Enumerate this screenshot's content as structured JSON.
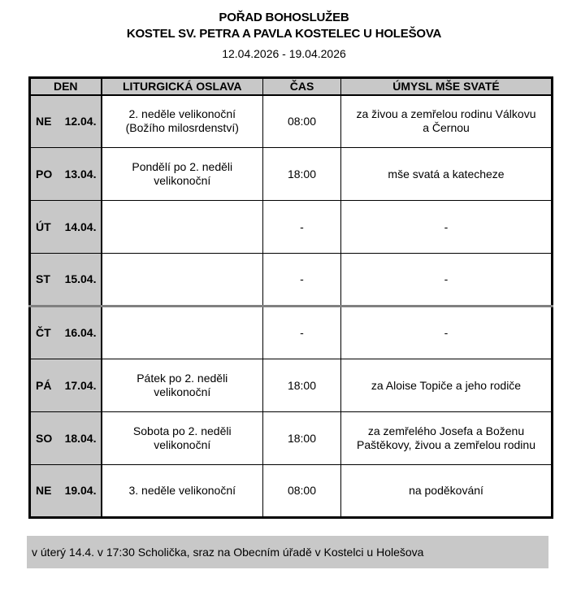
{
  "title": {
    "line1": "POŘAD BOHOSLUŽEB",
    "line2": "KOSTEL SV. PETRA A PAVLA KOSTELEC U HOLEŠOVA",
    "date_range": "12.04.2026 - 19.04.2026"
  },
  "table": {
    "headers": [
      "DEN",
      "LITURGICKÁ OSLAVA",
      "ČAS",
      "ÚMYSL MŠE SVATÉ"
    ],
    "rows": [
      {
        "day": "NE",
        "date": "12.04.",
        "celebration": "2. neděle velikonoční\n(Božího milosrdenství)",
        "time": "08:00",
        "intention": "za živou a zemřelou rodinu Válkovu\na Černou"
      },
      {
        "day": "PO",
        "date": "13.04.",
        "celebration": "Pondělí po 2. neděli\nvelikonoční",
        "time": "18:00",
        "intention": "mše svatá a katecheze"
      },
      {
        "day": "ÚT",
        "date": "14.04.",
        "celebration": "",
        "time": "-",
        "intention": "-"
      },
      {
        "day": "ST",
        "date": "15.04.",
        "celebration": "",
        "time": "-",
        "intention": "-"
      },
      {
        "day": "ČT",
        "date": "16.04.",
        "celebration": "",
        "time": "-",
        "intention": "-"
      },
      {
        "day": "PÁ",
        "date": "17.04.",
        "celebration": "Pátek po 2. neděli\nvelikonoční",
        "time": "18:00",
        "intention": "za Aloise Topiče a jeho rodiče"
      },
      {
        "day": "SO",
        "date": "18.04.",
        "celebration": "Sobota po 2. neděli\nvelikonoční",
        "time": "18:00",
        "intention": "za zemřelého Josefa a Boženu\nPaštěkovy, živou a zemřelou rodinu"
      },
      {
        "day": "NE",
        "date": "19.04.",
        "celebration": "3. neděle velikonoční",
        "time": "08:00",
        "intention": "na poděkování"
      }
    ]
  },
  "footer": {
    "note": "v úterý 14.4. v 17:30 Scholička, sraz na Obecním úřadě v Kostelci u Holešova"
  },
  "colors": {
    "shading": "#c8c8c8",
    "border": "#000000",
    "page_break": "#808080"
  }
}
